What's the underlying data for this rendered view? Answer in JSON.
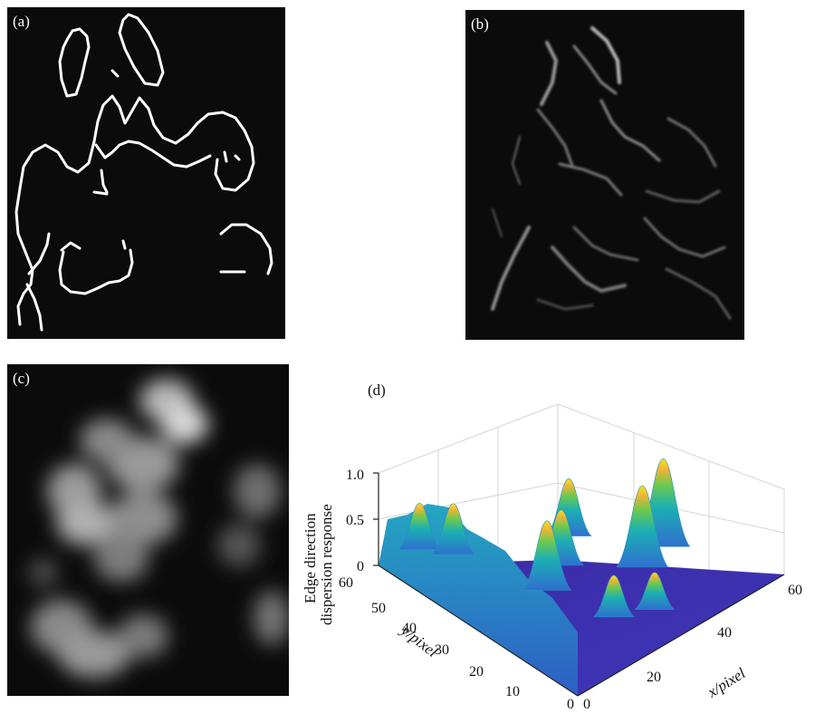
{
  "panels": {
    "a": {
      "label": "(a)"
    },
    "b": {
      "label": "(b)"
    },
    "c": {
      "label": "(c)"
    },
    "d": {
      "label": "(d)"
    }
  },
  "chart_data": {
    "type": "surface",
    "zlabel_line1": "Edge direction",
    "zlabel_line2": "dispersion response",
    "xlabel": "x/pixel",
    "ylabel": "y/pixel",
    "zlim": [
      0,
      1.0
    ],
    "xlim": [
      0,
      60
    ],
    "ylim": [
      0,
      60
    ],
    "z_ticks": [
      "0",
      "0.5",
      "1.0"
    ],
    "x_ticks": [
      "0",
      "20",
      "40",
      "60"
    ],
    "y_ticks": [
      "0",
      "10",
      "20",
      "30",
      "40",
      "50",
      "60"
    ],
    "grid": true,
    "colormap": [
      "#3e26a8",
      "#2f7bd8",
      "#18b3b4",
      "#7dc94a",
      "#f1c232",
      "#f9f61b"
    ],
    "peaks": [
      {
        "x": 48,
        "y": 24,
        "z": 0.95
      },
      {
        "x": 36,
        "y": 40,
        "z": 0.62
      },
      {
        "x": 40,
        "y": 22,
        "z": 0.88
      },
      {
        "x": 28,
        "y": 34,
        "z": 0.6
      },
      {
        "x": 20,
        "y": 30,
        "z": 0.75
      },
      {
        "x": 14,
        "y": 52,
        "z": 0.55
      },
      {
        "x": 10,
        "y": 58,
        "z": 0.5
      },
      {
        "x": 24,
        "y": 14,
        "z": 0.45
      },
      {
        "x": 32,
        "y": 10,
        "z": 0.4
      }
    ]
  }
}
